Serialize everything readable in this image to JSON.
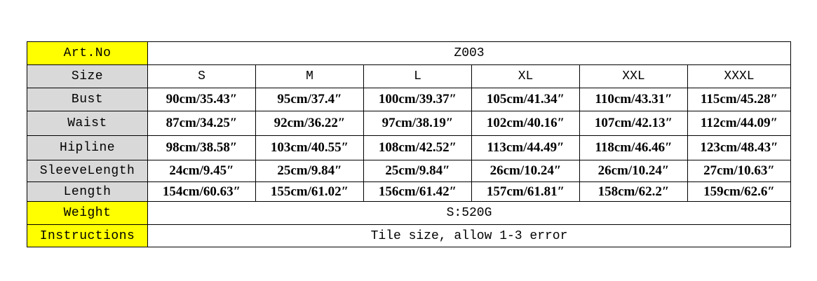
{
  "table": {
    "rows": [
      {
        "label": "Art.No",
        "cells": [
          "Z003"
        ]
      },
      {
        "label": "Size",
        "cells": [
          "S",
          "M",
          "L",
          "XL",
          "XXL",
          "XXXL"
        ]
      },
      {
        "label": "Bust",
        "cells": [
          "90cm/35.43″",
          "95cm/37.4″",
          "100cm/39.37″",
          "105cm/41.34″",
          "110cm/43.31″",
          "115cm/45.28″"
        ]
      },
      {
        "label": "Waist",
        "cells": [
          "87cm/34.25″",
          "92cm/36.22″",
          "97cm/38.19″",
          "102cm/40.16″",
          "107cm/42.13″",
          "112cm/44.09″"
        ]
      },
      {
        "label": "Hipline",
        "cells": [
          "98cm/38.58″",
          "103cm/40.55″",
          "108cm/42.52″",
          "113cm/44.49″",
          "118cm/46.46″",
          "123cm/48.43″"
        ]
      },
      {
        "label": "SleeveLength",
        "cells": [
          "24cm/9.45″",
          "25cm/9.84″",
          "25cm/9.84″",
          "26cm/10.24″",
          "26cm/10.24″",
          "27cm/10.63″"
        ]
      },
      {
        "label": "Length",
        "cells": [
          "154cm/60.63″",
          "155cm/61.02″",
          "156cm/61.42″",
          "157cm/61.81″",
          "158cm/62.2″",
          "159cm/62.6″"
        ]
      },
      {
        "label": "Weight",
        "cells": [
          "S:520G"
        ]
      },
      {
        "label": "Instructions",
        "cells": [
          "Tile size, allow 1-3 error"
        ]
      }
    ]
  }
}
